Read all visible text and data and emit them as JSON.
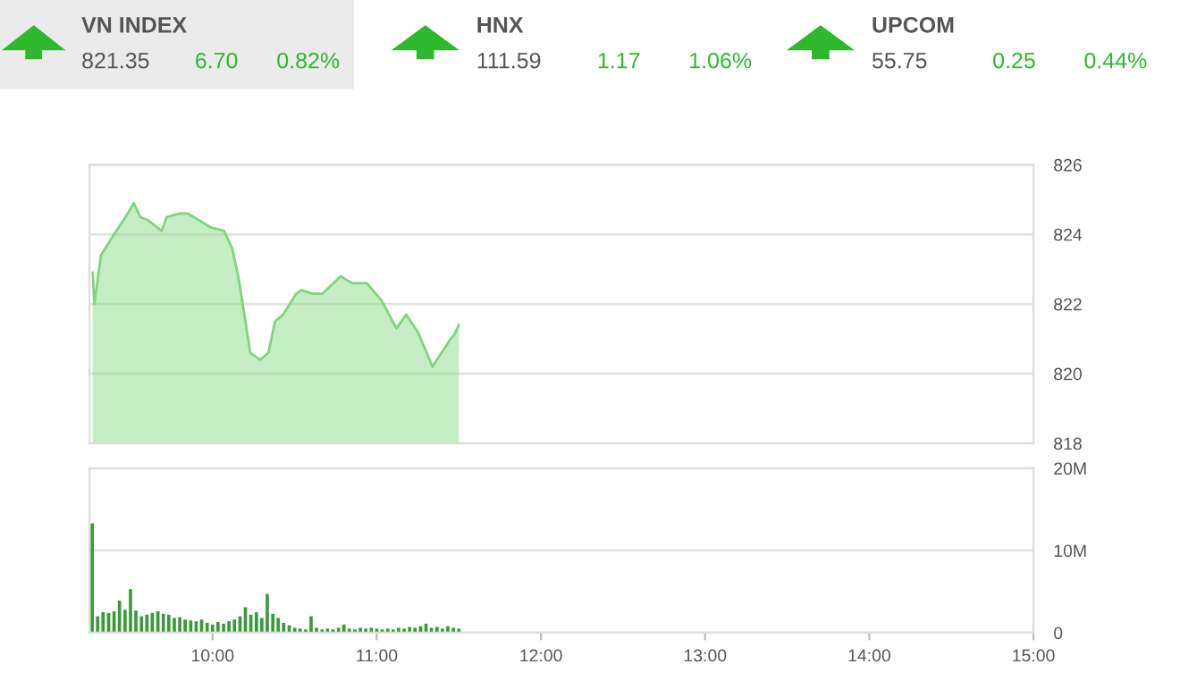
{
  "chart_data": [
    {
      "type": "other",
      "title": "VN INDEX",
      "annotations": [
        "821.35",
        "6.70",
        "0.82%"
      ]
    },
    {
      "type": "other",
      "title": "HNX",
      "annotations": [
        "111.59",
        "1.17",
        "1.06%"
      ]
    },
    {
      "type": "other",
      "title": "UPCOM",
      "annotations": [
        "55.75",
        "0.25",
        "0.44%"
      ]
    },
    {
      "type": "area",
      "color": "#7ed67a",
      "grid": "y",
      "tick_labels": "y",
      "xlim": [
        9.25,
        15
      ],
      "ylim": [
        818,
        826
      ],
      "yticks": [
        818,
        820,
        822,
        824,
        826
      ],
      "x": [
        9.27,
        9.28,
        9.32,
        9.4,
        9.47,
        9.52,
        9.56,
        9.61,
        9.69,
        9.72,
        9.8,
        9.85,
        9.92,
        9.99,
        10.07,
        10.12,
        10.16,
        10.2,
        10.23,
        10.29,
        10.34,
        10.38,
        10.43,
        10.51,
        10.54,
        10.61,
        10.67,
        10.78,
        10.85,
        10.94,
        11.03,
        11.12,
        11.18,
        11.25,
        11.34,
        11.38,
        11.45,
        11.47,
        11.5
      ],
      "values": [
        822.9,
        822.0,
        823.4,
        824.0,
        824.5,
        824.9,
        824.5,
        824.4,
        824.1,
        824.5,
        824.6,
        824.6,
        824.4,
        824.2,
        824.1,
        823.6,
        822.7,
        821.5,
        820.6,
        820.4,
        820.6,
        821.5,
        821.7,
        822.3,
        822.4,
        822.3,
        822.3,
        822.8,
        822.6,
        822.6,
        822.1,
        821.3,
        821.7,
        821.2,
        820.2,
        820.5,
        821.0,
        821.1,
        821.4
      ]
    },
    {
      "type": "bar",
      "color": "#3a9a3a",
      "grid": "y",
      "xlim": [
        9.25,
        15
      ],
      "xticks": [
        {
          "value": 10,
          "label": "10:00"
        },
        {
          "value": 11,
          "label": "11:00"
        },
        {
          "value": 12,
          "label": "12:00"
        },
        {
          "value": 13,
          "label": "13:00"
        },
        {
          "value": 14,
          "label": "14:00"
        },
        {
          "value": 15,
          "label": "15:00"
        }
      ],
      "ylim": [
        0,
        20
      ],
      "yticks": [
        0,
        {
          "value": 10,
          "label": "10M"
        },
        {
          "value": 20,
          "label": "20M"
        }
      ],
      "x": [
        9.267,
        9.3,
        9.333,
        9.367,
        9.4,
        9.433,
        9.467,
        9.5,
        9.533,
        9.567,
        9.6,
        9.633,
        9.667,
        9.7,
        9.733,
        9.767,
        9.8,
        9.833,
        9.867,
        9.9,
        9.933,
        9.967,
        10.0,
        10.033,
        10.067,
        10.1,
        10.133,
        10.167,
        10.2,
        10.233,
        10.267,
        10.3,
        10.333,
        10.367,
        10.4,
        10.433,
        10.467,
        10.5,
        10.533,
        10.567,
        10.6,
        10.633,
        10.667,
        10.7,
        10.733,
        10.767,
        10.8,
        10.833,
        10.867,
        10.9,
        10.933,
        10.967,
        11.0,
        11.033,
        11.067,
        11.1,
        11.133,
        11.167,
        11.2,
        11.233,
        11.267,
        11.3,
        11.333,
        11.367,
        11.4,
        11.433,
        11.467,
        11.5
      ],
      "values": [
        13.3,
        2.0,
        2.5,
        2.4,
        2.6,
        3.9,
        2.8,
        5.3,
        2.7,
        2.0,
        2.2,
        2.4,
        2.6,
        2.3,
        2.2,
        1.8,
        1.9,
        1.6,
        1.5,
        1.4,
        1.6,
        1.2,
        1.0,
        1.3,
        1.1,
        1.4,
        1.6,
        2.0,
        3.1,
        2.2,
        2.5,
        1.8,
        4.7,
        2.3,
        1.8,
        1.2,
        0.9,
        0.6,
        0.5,
        0.4,
        2.0,
        0.6,
        0.4,
        0.5,
        0.4,
        0.6,
        1.0,
        0.5,
        0.4,
        0.6,
        0.5,
        0.6,
        0.5,
        0.4,
        0.5,
        0.4,
        0.6,
        0.5,
        0.7,
        0.6,
        0.8,
        1.1,
        0.6,
        0.7,
        0.5,
        0.8,
        0.6,
        0.5
      ]
    }
  ]
}
